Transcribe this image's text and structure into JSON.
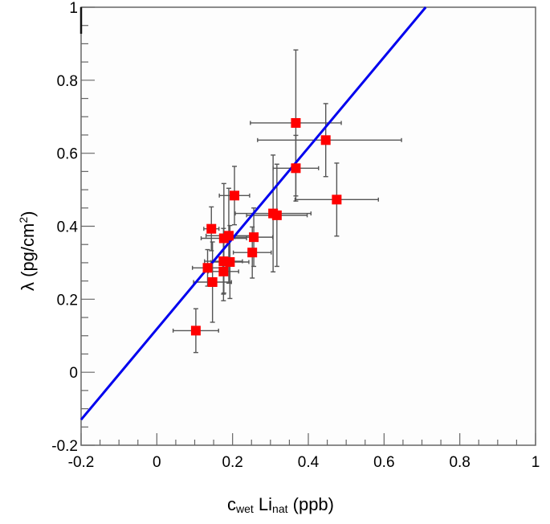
{
  "chart_data": {
    "type": "scatter",
    "title": "",
    "xlabel": {
      "main": "c",
      "sub": "wet",
      "main2": " Li",
      "sub2": "nat",
      "tail": " (ppb)"
    },
    "ylabel": {
      "text": "λ (pg/cm",
      "sup": "2",
      "tail": ")"
    },
    "xlim": [
      -0.2,
      1.0
    ],
    "ylim": [
      -0.2,
      1.0
    ],
    "x_ticks": [
      "-0.2",
      "0",
      "0.2",
      "0.4",
      "0.6",
      "0.8",
      "1"
    ],
    "x_tick_values": [
      -0.2,
      0,
      0.2,
      0.4,
      0.6,
      0.8,
      1.0
    ],
    "y_ticks": [
      "-0.2",
      "0",
      "0.2",
      "0.4",
      "0.6",
      "0.8",
      "1"
    ],
    "y_tick_values": [
      -0.2,
      0,
      0.2,
      0.4,
      0.6,
      0.8,
      1.0
    ],
    "grid": false,
    "marker_color": "#ff0000",
    "errorbar_color": "#555555",
    "fit_color": "#0000ee",
    "points": [
      {
        "x": 0.103,
        "y": 0.114,
        "xerr": [
          0.06,
          0.06
        ],
        "yerr": [
          0.06,
          0.06
        ]
      },
      {
        "x": 0.367,
        "y": 0.683,
        "xerr": [
          0.12,
          0.12
        ],
        "yerr": [
          0.2,
          0.2
        ]
      },
      {
        "x": 0.446,
        "y": 0.636,
        "xerr": [
          0.18,
          0.2
        ],
        "yerr": [
          0.1,
          0.1
        ]
      },
      {
        "x": 0.367,
        "y": 0.559,
        "xerr": [
          0.06,
          0.06
        ],
        "yerr": [
          0.09,
          0.09
        ]
      },
      {
        "x": 0.475,
        "y": 0.473,
        "xerr": [
          0.11,
          0.11
        ],
        "yerr": [
          0.1,
          0.1
        ]
      },
      {
        "x": 0.205,
        "y": 0.484,
        "xerr": [
          0.04,
          0.04
        ],
        "yerr": [
          0.08,
          0.08
        ]
      },
      {
        "x": 0.144,
        "y": 0.393,
        "xerr": [
          0.02,
          0.02
        ],
        "yerr": [
          0.06,
          0.06
        ]
      },
      {
        "x": 0.19,
        "y": 0.374,
        "xerr": [
          0.06,
          0.06
        ],
        "yerr": [
          0.13,
          0.13
        ]
      },
      {
        "x": 0.177,
        "y": 0.367,
        "xerr": [
          0.06,
          0.06
        ],
        "yerr": [
          0.15,
          0.15
        ]
      },
      {
        "x": 0.307,
        "y": 0.435,
        "xerr": [
          0.1,
          0.1
        ],
        "yerr": [
          0.16,
          0.16
        ]
      },
      {
        "x": 0.317,
        "y": 0.43,
        "xerr": [
          0.08,
          0.08
        ],
        "yerr": [
          0.14,
          0.14
        ]
      },
      {
        "x": 0.256,
        "y": 0.37,
        "xerr": [
          0.05,
          0.05
        ],
        "yerr": [
          0.08,
          0.08
        ]
      },
      {
        "x": 0.252,
        "y": 0.328,
        "xerr": [
          0.05,
          0.05
        ],
        "yerr": [
          0.07,
          0.07
        ]
      },
      {
        "x": 0.134,
        "y": 0.286,
        "xerr": [
          0.04,
          0.04
        ],
        "yerr": [
          0.05,
          0.05
        ]
      },
      {
        "x": 0.147,
        "y": 0.247,
        "xerr": [
          0.05,
          0.05
        ],
        "yerr": [
          0.11,
          0.11
        ]
      },
      {
        "x": 0.176,
        "y": 0.304,
        "xerr": [
          0.05,
          0.05
        ],
        "yerr": [
          0.09,
          0.09
        ]
      },
      {
        "x": 0.193,
        "y": 0.302,
        "xerr": [
          0.05,
          0.05
        ],
        "yerr": [
          0.1,
          0.1
        ]
      },
      {
        "x": 0.176,
        "y": 0.276,
        "xerr": [
          0.04,
          0.04
        ],
        "yerr": [
          0.08,
          0.08
        ]
      }
    ],
    "fit_line": {
      "x": [
        -0.2,
        0.71
      ],
      "y": [
        -0.13,
        1.0
      ]
    }
  }
}
